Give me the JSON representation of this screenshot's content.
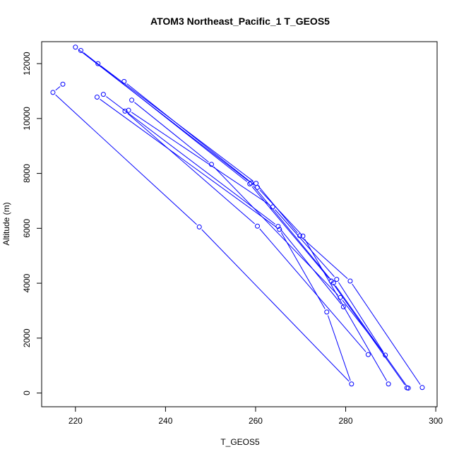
{
  "chart_data": {
    "type": "scatter",
    "title": "ATOM3 Northeast_Pacific_1 T_GEOS5",
    "xlabel": "T_GEOS5",
    "ylabel": "Altitude (m)",
    "xlim": [
      212.5,
      300.3
    ],
    "ylim": [
      -500,
      12800
    ],
    "x_ticks": [
      220,
      240,
      260,
      280,
      300
    ],
    "y_ticks": [
      0,
      2000,
      4000,
      6000,
      8000,
      10000,
      12000
    ],
    "grid": false,
    "legend": "none",
    "color": "#0000ff",
    "series": [
      {
        "points": [
          [
            215,
            10950
          ],
          [
            217.2,
            11250
          ],
          [
            220,
            12600
          ],
          [
            221.2,
            12480
          ],
          [
            225,
            12000
          ],
          [
            224.8,
            10780
          ],
          [
            226.2,
            10880
          ],
          [
            230.8,
            11350
          ],
          [
            231,
            10270
          ],
          [
            231.8,
            10300
          ],
          [
            232.5,
            10670
          ],
          [
            247.5,
            6050
          ],
          [
            250.2,
            8330
          ],
          [
            258.7,
            7620
          ],
          [
            259,
            7650
          ],
          [
            260.1,
            7640
          ],
          [
            260.4,
            7490
          ],
          [
            260.4,
            6080
          ],
          [
            263.8,
            6780
          ],
          [
            265,
            6070
          ],
          [
            265.3,
            5960
          ],
          [
            269.8,
            5730
          ],
          [
            270.5,
            5720
          ],
          [
            275.8,
            2950
          ],
          [
            276.8,
            4080
          ],
          [
            277.3,
            4010
          ],
          [
            278,
            4140
          ],
          [
            278.8,
            3480
          ],
          [
            279.5,
            3140
          ],
          [
            281,
            4080
          ],
          [
            281.3,
            330
          ],
          [
            285,
            1400
          ],
          [
            288.8,
            1380
          ],
          [
            289.5,
            330
          ],
          [
            293.6,
            190
          ],
          [
            293.9,
            180
          ],
          [
            297,
            200
          ]
        ],
        "profiles": [
          [
            [
              221.2,
              12480
            ],
            [
              258.7,
              7620
            ],
            [
              276.8,
              4080
            ],
            [
              293.6,
              190
            ]
          ],
          [
            [
              220,
              12600
            ],
            [
              259,
              7650
            ],
            [
              277.3,
              4010
            ],
            [
              293.9,
              180
            ]
          ],
          [
            [
              225,
              12000
            ],
            [
              260.1,
              7640
            ],
            [
              269.8,
              5730
            ],
            [
              281,
              4080
            ],
            [
              297,
              200
            ]
          ],
          [
            [
              230.8,
              11350
            ],
            [
              260.4,
              7490
            ],
            [
              270.5,
              5720
            ],
            [
              289.5,
              330
            ]
          ],
          [
            [
              232.5,
              10670
            ],
            [
              250.2,
              8330
            ],
            [
              278.8,
              3480
            ],
            [
              288.8,
              1380
            ]
          ],
          [
            [
              231.8,
              10300
            ],
            [
              263.8,
              6780
            ],
            [
              278,
              4140
            ],
            [
              288.8,
              1380
            ]
          ],
          [
            [
              231,
              10270
            ],
            [
              260.4,
              6080
            ],
            [
              285,
              1400
            ]
          ],
          [
            [
              226.2,
              10880
            ],
            [
              265,
              6070
            ],
            [
              279.5,
              3140
            ]
          ],
          [
            [
              224.8,
              10780
            ],
            [
              265.3,
              5960
            ],
            [
              275.8,
              2950
            ],
            [
              281.3,
              330
            ]
          ],
          [
            [
              217.2,
              11250
            ],
            [
              215,
              10950
            ]
          ],
          [
            [
              215,
              10950
            ],
            [
              247.5,
              6050
            ],
            [
              281.3,
              330
            ]
          ]
        ]
      }
    ]
  }
}
